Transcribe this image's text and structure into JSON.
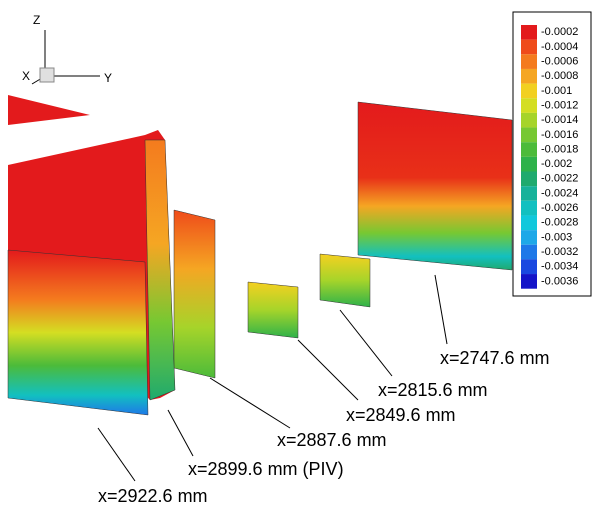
{
  "axes_triad": {
    "z": "Z",
    "x": "X",
    "y": "Y"
  },
  "colorbar": {
    "levels": [
      {
        "label": "-0.0002",
        "color": "#e31a1c"
      },
      {
        "label": "-0.0004",
        "color": "#ef4b1a"
      },
      {
        "label": "-0.0006",
        "color": "#f47b1e"
      },
      {
        "label": "-0.0008",
        "color": "#f5a623"
      },
      {
        "label": "-0.001",
        "color": "#f2d021"
      },
      {
        "label": "-0.0012",
        "color": "#d4de22"
      },
      {
        "label": "-0.0014",
        "color": "#a6d42a"
      },
      {
        "label": "-0.0016",
        "color": "#77c832"
      },
      {
        "label": "-0.0018",
        "color": "#4cbb3a"
      },
      {
        "label": "-0.002",
        "color": "#2eb24a"
      },
      {
        "label": "-0.0022",
        "color": "#1faa6e"
      },
      {
        "label": "-0.0024",
        "color": "#17b29a"
      },
      {
        "label": "-0.0026",
        "color": "#12c0c0"
      },
      {
        "label": "-0.0028",
        "color": "#10c8dc"
      },
      {
        "label": "-0.003",
        "color": "#1ea8e8"
      },
      {
        "label": "-0.0032",
        "color": "#1e78e8"
      },
      {
        "label": "-0.0034",
        "color": "#1a48e0"
      },
      {
        "label": "-0.0036",
        "color": "#1414c8"
      }
    ]
  },
  "planes": [
    {
      "label": "x=2747.6 mm"
    },
    {
      "label": "x=2815.6 mm"
    },
    {
      "label": "x=2849.6 mm"
    },
    {
      "label": "x=2887.6 mm"
    },
    {
      "label": "x=2899.6 mm (PIV)"
    },
    {
      "label": "x=2922.6 mm"
    }
  ]
}
